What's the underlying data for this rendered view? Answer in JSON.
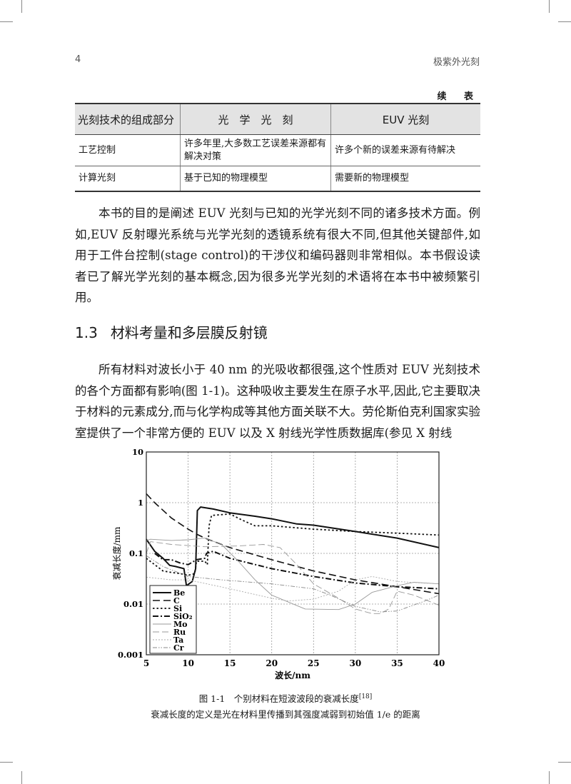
{
  "header": {
    "page_number": "4",
    "book_title": "极紫外光刻"
  },
  "table": {
    "continued": "续 表",
    "headers": [
      "光刻技术的组成部分",
      "光　学　光　刻",
      "EUV 光刻"
    ],
    "rows": [
      [
        "工艺控制",
        "许多年里,大多数工艺误差来源都有解决对策",
        "许多个新的误差来源有待解决"
      ],
      [
        "计算光刻",
        "基于已知的物理模型",
        "需要新的物理模型"
      ]
    ]
  },
  "paragraphs": [
    "本书的目的是阐述 EUV 光刻与已知的光学光刻不同的诸多技术方面。例如,EUV 反射曝光系统与光学光刻的透镜系统有很大不同,但其他关键部件,如用于工件台控制(stage control)的干涉仪和编码器则非常相似。本书假设读者已了解光学光刻的基本概念,因为很多光学光刻的术语将在本书中被频繁引用。",
    "所有材料对波长小于 40 nm 的光吸收都很强,这个性质对 EUV 光刻技术的各个方面都有影响(图 1-1)。这种吸收主要发生在原子水平,因此,它主要取决于材料的元素成分,而与化学构成等其他方面关联不大。劳伦斯伯克利国家实验室提供了一个非常方便的 EUV 以及 X 射线光学性质数据库(参见 X 射线"
  ],
  "section": {
    "number": "1.3",
    "title": "材料考量和多层膜反射镜"
  },
  "figure": {
    "caption": "图 1-1　个别材料在短波波段的衰减长度",
    "citation": "[18]",
    "note": "衰减长度的定义是光在材料里传播到其强度减弱到初始值 1/e 的距离"
  },
  "chart_data": {
    "type": "line",
    "xlabel": "波长/nm",
    "ylabel": "衰减长度/mm",
    "xlim": [
      5,
      40
    ],
    "ylim": [
      0.001,
      10
    ],
    "yscale": "log",
    "xticks": [
      5,
      10,
      15,
      20,
      25,
      30,
      35,
      40
    ],
    "yticks": [
      0.001,
      0.01,
      0.1,
      1,
      10
    ],
    "ytick_labels": [
      "0.001",
      "0.01",
      "0.1",
      "1",
      "10"
    ],
    "grid": true,
    "legend_position": "bottom-left",
    "series": [
      {
        "name": "Be",
        "color": "#111111",
        "style": "solid-thick",
        "x": [
          5,
          6,
          7,
          7.8,
          8.5,
          9.5,
          9.8,
          10.5,
          10.9,
          11.1,
          11.5,
          13,
          15,
          18,
          20,
          23,
          25,
          30,
          35,
          40
        ],
        "y": [
          0.19,
          0.11,
          0.08,
          0.058,
          0.055,
          0.05,
          0.023,
          0.028,
          0.05,
          0.7,
          0.82,
          0.75,
          0.63,
          0.54,
          0.48,
          0.38,
          0.36,
          0.27,
          0.2,
          0.13
        ]
      },
      {
        "name": "C",
        "color": "#111111",
        "style": "dash-long",
        "x": [
          5,
          6,
          8,
          10,
          11,
          12,
          15,
          20,
          25,
          30,
          35,
          40
        ],
        "y": [
          1.5,
          1.0,
          0.5,
          0.3,
          0.24,
          0.2,
          0.13,
          0.075,
          0.045,
          0.03,
          0.022,
          0.016
        ]
      },
      {
        "name": "Si",
        "color": "#111111",
        "style": "dot",
        "x": [
          5,
          6,
          7,
          8,
          9,
          10,
          10.8,
          11,
          12,
          12.3,
          12.5,
          12.8,
          15,
          16.5,
          18,
          20,
          25,
          30,
          35,
          40
        ],
        "y": [
          0.08,
          0.06,
          0.045,
          0.042,
          0.04,
          0.037,
          0.04,
          0.07,
          0.07,
          0.06,
          0.35,
          0.56,
          0.6,
          0.45,
          0.35,
          0.35,
          0.3,
          0.27,
          0.25,
          0.23
        ]
      },
      {
        "name": "SiO₂",
        "color": "#111111",
        "style": "dash-dot-thick",
        "x": [
          6,
          7,
          8,
          9,
          10,
          11,
          12,
          12.2,
          13,
          15,
          20,
          25,
          30,
          35,
          40
        ],
        "y": [
          0.1,
          0.075,
          0.075,
          0.065,
          0.06,
          0.075,
          0.08,
          0.1,
          0.11,
          0.08,
          0.05,
          0.035,
          0.026,
          0.022,
          0.02
        ]
      },
      {
        "name": "Mo",
        "color": "#999999",
        "style": "solid-thin",
        "x": [
          5,
          5.5,
          8,
          10,
          12,
          14,
          16,
          18,
          20,
          24,
          28,
          30,
          32,
          35,
          37,
          40
        ],
        "y": [
          0.18,
          0.19,
          0.18,
          0.185,
          0.2,
          0.15,
          0.07,
          0.03,
          0.015,
          0.008,
          0.0078,
          0.01,
          0.017,
          0.023,
          0.027,
          0.025
        ]
      },
      {
        "name": "Ru",
        "color": "#999999",
        "style": "dash-thin",
        "x": [
          5,
          5.5,
          8,
          12,
          16,
          19,
          21,
          23,
          25,
          28,
          30,
          32,
          33,
          34,
          35,
          37,
          40
        ],
        "y": [
          0.1,
          0.17,
          0.15,
          0.135,
          0.14,
          0.15,
          0.13,
          0.06,
          0.025,
          0.013,
          0.008,
          0.0065,
          0.0065,
          0.008,
          0.018,
          0.015,
          0.0095
        ]
      },
      {
        "name": "Ta",
        "color": "#aaaaaa",
        "style": "dot-thin",
        "x": [
          5,
          8,
          10,
          15,
          20,
          22,
          25,
          28,
          30,
          32,
          35,
          38,
          40
        ],
        "y": [
          0.034,
          0.03,
          0.03,
          0.02,
          0.013,
          0.0115,
          0.0125,
          0.018,
          0.03,
          0.035,
          0.028,
          0.026,
          0.025
        ]
      },
      {
        "name": "Cr",
        "color": "#888888",
        "style": "dash-dot-dot-thin",
        "x": [
          5,
          7,
          10,
          14,
          20,
          25,
          27,
          30,
          33,
          35,
          38,
          40
        ],
        "y": [
          0.09,
          0.055,
          0.035,
          0.03,
          0.025,
          0.02,
          0.015,
          0.009,
          0.007,
          0.0073,
          0.011,
          0.015
        ]
      }
    ]
  }
}
